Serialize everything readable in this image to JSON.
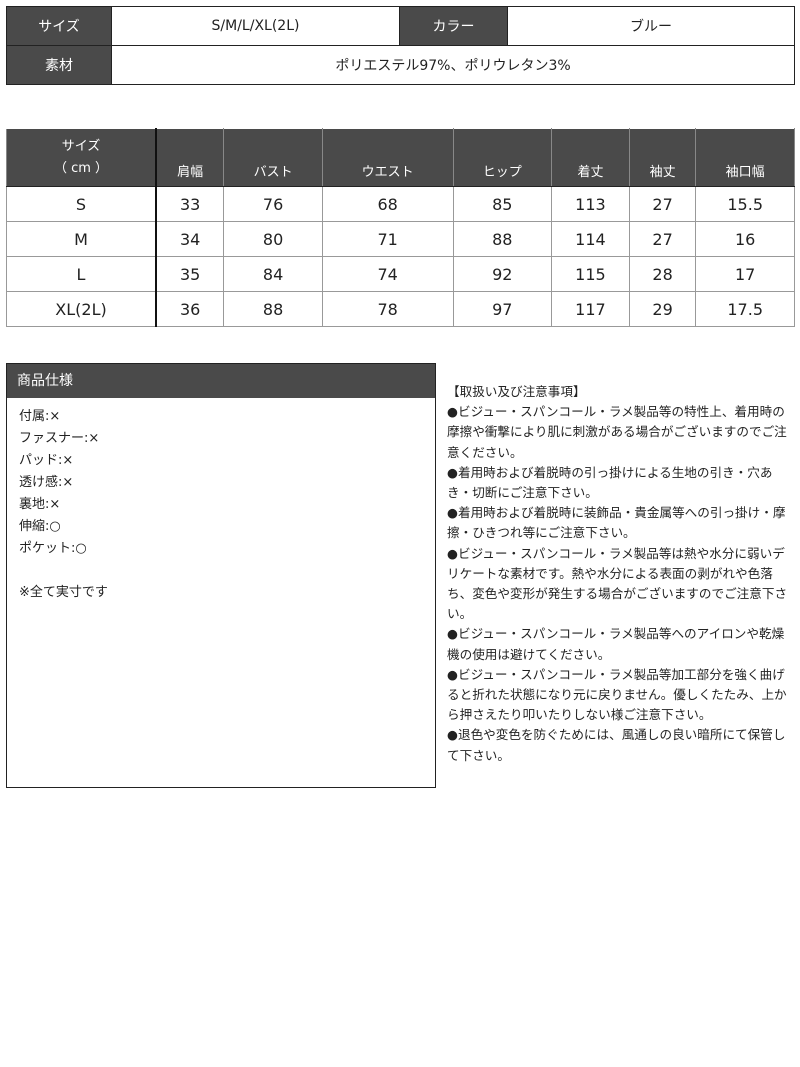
{
  "basic": {
    "size_label": "サイズ",
    "size_value": "S/M/L/XL(2L)",
    "color_label": "カラー",
    "color_value": "ブルー",
    "material_label": "素材",
    "material_value": "ポリエステル97%、ポリウレタン3%"
  },
  "size_table": {
    "header_first": [
      "サイズ",
      "（ cm ）"
    ],
    "columns": [
      "肩幅",
      "バスト",
      "ウエスト",
      "ヒップ",
      "着丈",
      "袖丈",
      "袖口幅"
    ],
    "rows": [
      {
        "size": "S",
        "values": [
          "33",
          "76",
          "68",
          "85",
          "113",
          "27",
          "15.5"
        ]
      },
      {
        "size": "M",
        "values": [
          "34",
          "80",
          "71",
          "88",
          "114",
          "27",
          "16"
        ]
      },
      {
        "size": "L",
        "values": [
          "35",
          "84",
          "74",
          "92",
          "115",
          "28",
          "17"
        ]
      },
      {
        "size": "XL(2L)",
        "values": [
          "36",
          "88",
          "78",
          "97",
          "117",
          "29",
          "17.5"
        ]
      }
    ]
  },
  "spec": {
    "title": "商品仕様",
    "items": [
      "付属:×",
      "ファスナー:×",
      "パッド:×",
      "透け感:×",
      "裏地:×",
      "伸縮:○",
      "ポケット:○",
      "",
      "※全て実寸です"
    ]
  },
  "notes": {
    "title": "【取扱い及び注意事項】",
    "items": [
      "●ビジュー・スパンコール・ラメ製品等の特性上、着用時の摩擦や衝撃により肌に刺激がある場合がございますのでご注意ください。",
      "●着用時および着脱時の引っ掛けによる生地の引き・穴あき・切断にご注意下さい。",
      "●着用時および着脱時に装飾品・貴金属等への引っ掛け・摩擦・ひきつれ等にご注意下さい。",
      "●ビジュー・スパンコール・ラメ製品等は熱や水分に弱いデリケートな素材です。熱や水分による表面の剥がれや色落ち、変色や変形が発生する場合がございますのでご注意下さい。",
      "●ビジュー・スパンコール・ラメ製品等へのアイロンや乾燥機の使用は避けてください。",
      "●ビジュー・スパンコール・ラメ製品等加工部分を強く曲げると折れた状態になり元に戻りません。優しくたたみ、上から押さえたり叩いたりしない様ご注意下さい。",
      "●退色や変色を防ぐためには、風通しの良い暗所にて保管して下さい。"
    ]
  },
  "colors": {
    "header_bg": "#4a4a4a"
  }
}
